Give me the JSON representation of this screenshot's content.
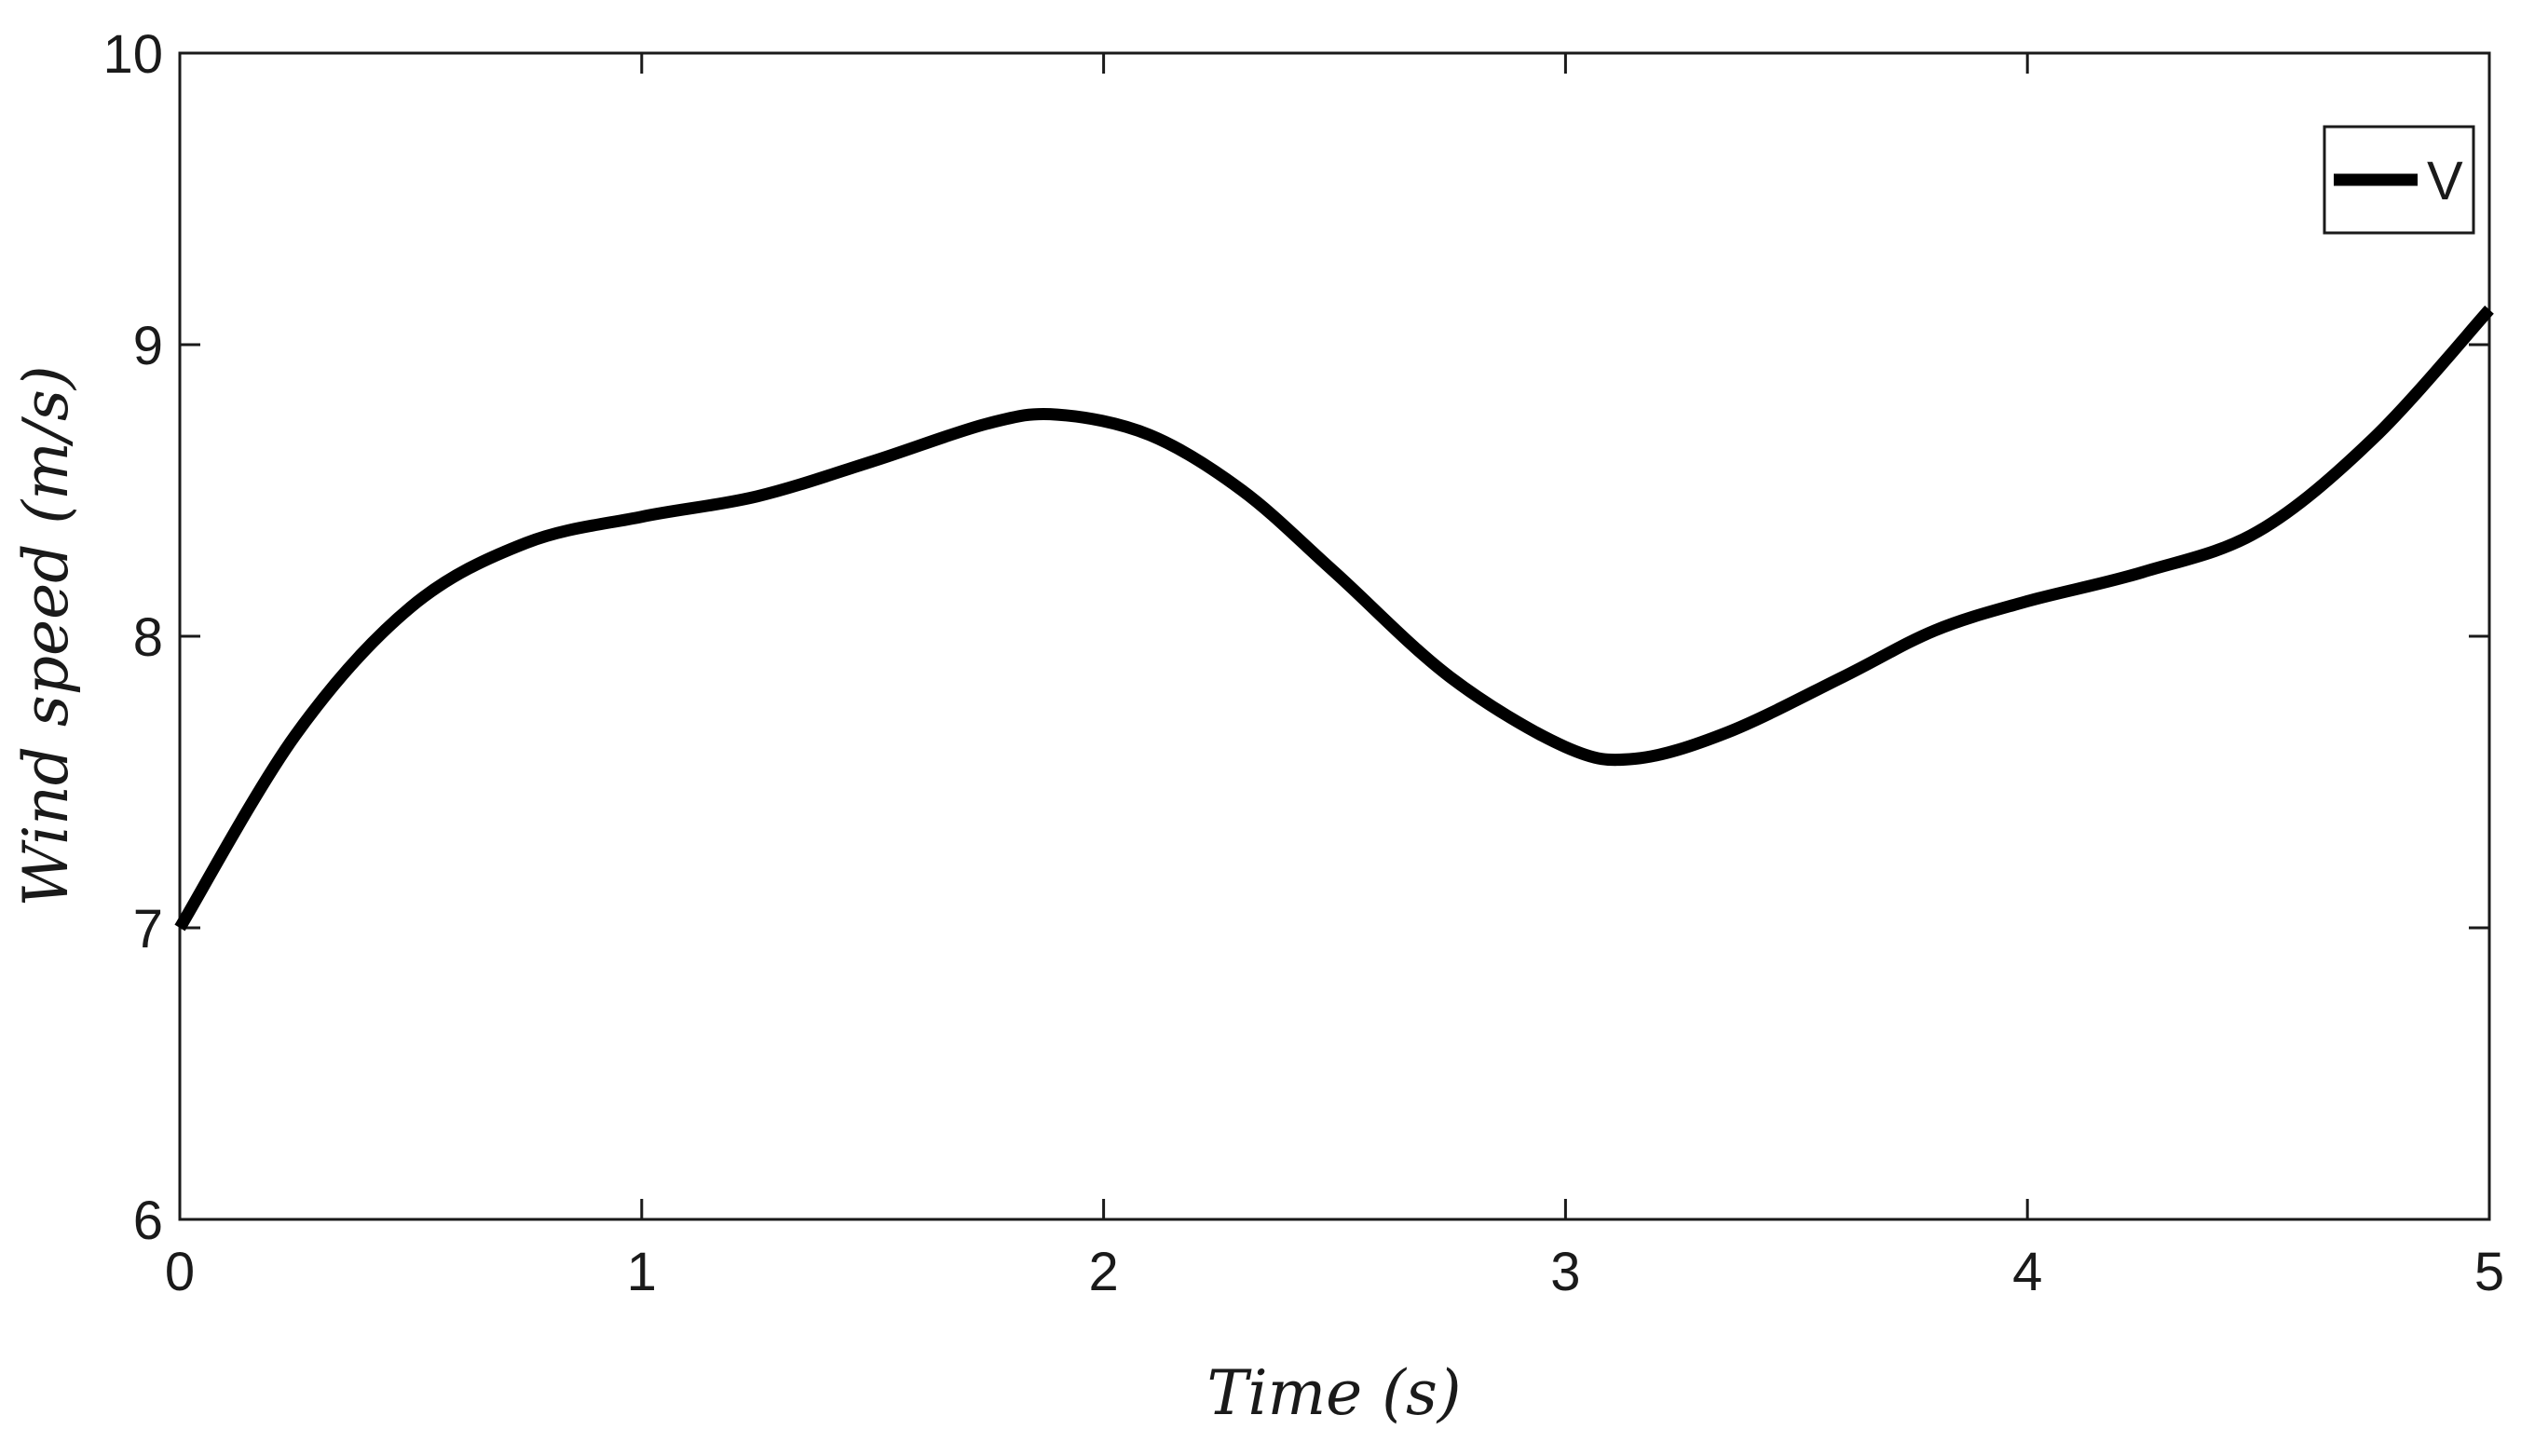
{
  "chart_data": {
    "type": "line",
    "xlabel": "Time (s)",
    "ylabel": "Wind speed (m/s)",
    "xlim": [
      0,
      5
    ],
    "ylim": [
      6,
      10
    ],
    "xticks": [
      "0",
      "1",
      "2",
      "3",
      "4",
      "5"
    ],
    "yticks": [
      "6",
      "7",
      "8",
      "9",
      "10"
    ],
    "grid": false,
    "legend_position": "top-right",
    "series": [
      {
        "name": "V",
        "color": "#000000",
        "x": [
          0,
          0.25,
          0.5,
          0.75,
          1.0,
          1.25,
          1.5,
          1.75,
          1.9,
          2.1,
          2.3,
          2.5,
          2.75,
          3.0,
          3.15,
          3.35,
          3.6,
          3.8,
          4.0,
          4.25,
          4.5,
          4.75,
          5.0
        ],
        "y": [
          7.0,
          7.66,
          8.1,
          8.32,
          8.41,
          8.48,
          8.6,
          8.73,
          8.76,
          8.69,
          8.5,
          8.22,
          7.86,
          7.62,
          7.58,
          7.67,
          7.86,
          8.02,
          8.12,
          8.22,
          8.36,
          8.68,
          9.12
        ]
      }
    ]
  }
}
